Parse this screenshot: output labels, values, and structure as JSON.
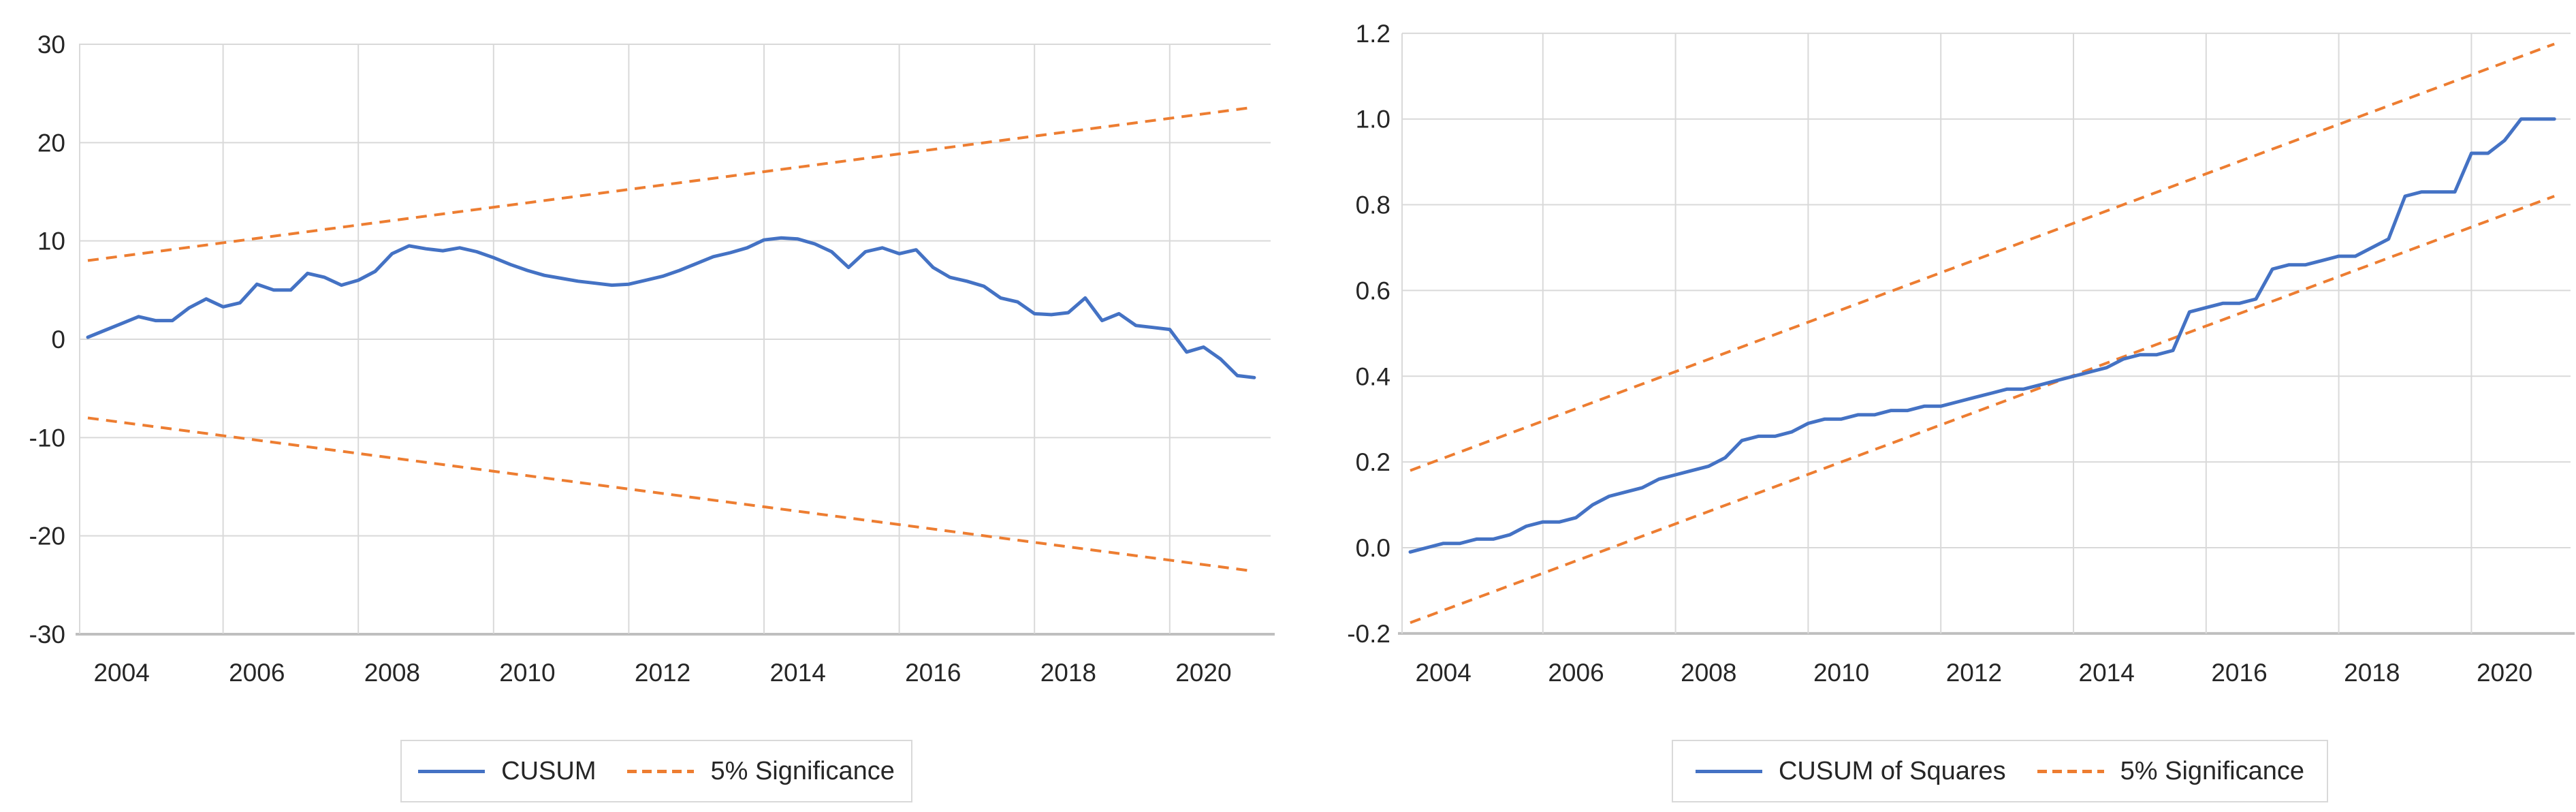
{
  "colors": {
    "series_blue": "#4472C4",
    "band_orange": "#ED7D31",
    "gridline": "#D9D9D9",
    "axis_line": "#BFBFBF",
    "tick_text": "#262626",
    "legend_border": "#D9D9D9"
  },
  "chart_data": [
    {
      "type": "line",
      "name": "cusum-test",
      "title": "",
      "xlabel": "",
      "ylabel": "",
      "frequency": "quarterly",
      "x_start": "2003Q3",
      "x_end": "2020Q4",
      "ylim": [
        -30,
        30
      ],
      "grid": true,
      "legend_position": "bottom",
      "y_tick_labels": [
        "30",
        "20",
        "10",
        "0",
        "-10",
        "-20",
        "-30"
      ],
      "y_tick_values": [
        30,
        20,
        10,
        0,
        -10,
        -20,
        -30
      ],
      "x_tick_labels": [
        "2004",
        "2006",
        "2008",
        "2010",
        "2012",
        "2014",
        "2016",
        "2018",
        "2020"
      ],
      "x_tick_years": [
        2004,
        2006,
        2008,
        2010,
        2012,
        2014,
        2016,
        2018,
        2020
      ],
      "legend": [
        {
          "label": "CUSUM",
          "style": "solid",
          "color": "#4472C4"
        },
        {
          "label": "5% Significance",
          "style": "dashed",
          "color": "#ED7D31"
        }
      ],
      "series": [
        {
          "name": "CUSUM",
          "values": [
            0.2,
            0.9,
            1.6,
            2.3,
            1.9,
            1.9,
            3.2,
            4.1,
            3.3,
            3.7,
            5.6,
            5.0,
            5.0,
            6.7,
            6.3,
            5.5,
            6.0,
            6.9,
            8.7,
            9.5,
            9.2,
            9.0,
            9.3,
            8.9,
            8.3,
            7.6,
            7.0,
            6.5,
            6.2,
            5.9,
            5.7,
            5.5,
            5.6,
            6.0,
            6.4,
            7.0,
            7.7,
            8.4,
            8.8,
            9.3,
            10.1,
            10.3,
            10.2,
            9.7,
            8.9,
            7.3,
            8.9,
            9.3,
            8.7,
            9.1,
            7.3,
            6.3,
            5.9,
            5.4,
            4.2,
            3.8,
            2.6,
            2.5,
            2.7,
            4.2,
            1.9,
            2.6,
            1.4,
            1.2,
            1.0,
            -1.3,
            -0.8,
            -2.0,
            -3.7,
            -3.9
          ]
        }
      ],
      "significance_bands": {
        "t_start": 2003.5,
        "t_end": 2020.75,
        "upper": {
          "start": 8.0,
          "end": 23.6
        },
        "lower": {
          "start": -8.0,
          "end": -23.6
        }
      }
    },
    {
      "type": "line",
      "name": "cusum-of-squares-test",
      "title": "",
      "xlabel": "",
      "ylabel": "",
      "frequency": "quarterly",
      "x_start": "2003Q3",
      "x_end": "2020Q4",
      "ylim": [
        -0.2,
        1.2
      ],
      "grid": true,
      "legend_position": "bottom",
      "y_tick_labels": [
        "1.2",
        "1.0",
        "0.8",
        "0.6",
        "0.4",
        "0.2",
        "0.0",
        "-0.2"
      ],
      "y_tick_values": [
        1.2,
        1.0,
        0.8,
        0.6,
        0.4,
        0.2,
        0.0,
        -0.2
      ],
      "x_tick_labels": [
        "2004",
        "2006",
        "2008",
        "2010",
        "2012",
        "2014",
        "2016",
        "2018",
        "2020"
      ],
      "x_tick_years": [
        2004,
        2006,
        2008,
        2010,
        2012,
        2014,
        2016,
        2018,
        2020
      ],
      "legend": [
        {
          "label": "CUSUM of Squares",
          "style": "solid",
          "color": "#4472C4"
        },
        {
          "label": "5% Significance",
          "style": "dashed",
          "color": "#ED7D31"
        }
      ],
      "series": [
        {
          "name": "CUSUM of Squares",
          "values": [
            -0.01,
            0.0,
            0.01,
            0.01,
            0.02,
            0.02,
            0.03,
            0.05,
            0.06,
            0.06,
            0.07,
            0.1,
            0.12,
            0.13,
            0.14,
            0.16,
            0.17,
            0.18,
            0.19,
            0.21,
            0.25,
            0.26,
            0.26,
            0.27,
            0.29,
            0.3,
            0.3,
            0.31,
            0.31,
            0.32,
            0.32,
            0.33,
            0.33,
            0.34,
            0.35,
            0.36,
            0.37,
            0.37,
            0.38,
            0.39,
            0.4,
            0.41,
            0.42,
            0.44,
            0.45,
            0.45,
            0.46,
            0.55,
            0.56,
            0.57,
            0.57,
            0.58,
            0.65,
            0.66,
            0.66,
            0.67,
            0.68,
            0.68,
            0.7,
            0.72,
            0.82,
            0.83,
            0.83,
            0.83,
            0.92,
            0.92,
            0.95,
            1.0,
            1.0,
            1.0
          ]
        }
      ],
      "significance_bands": {
        "t_start": 2003.5,
        "t_end": 2020.75,
        "upper": {
          "start": 0.18,
          "end": 1.175
        },
        "lower": {
          "start": -0.175,
          "end": 0.82
        }
      }
    }
  ]
}
